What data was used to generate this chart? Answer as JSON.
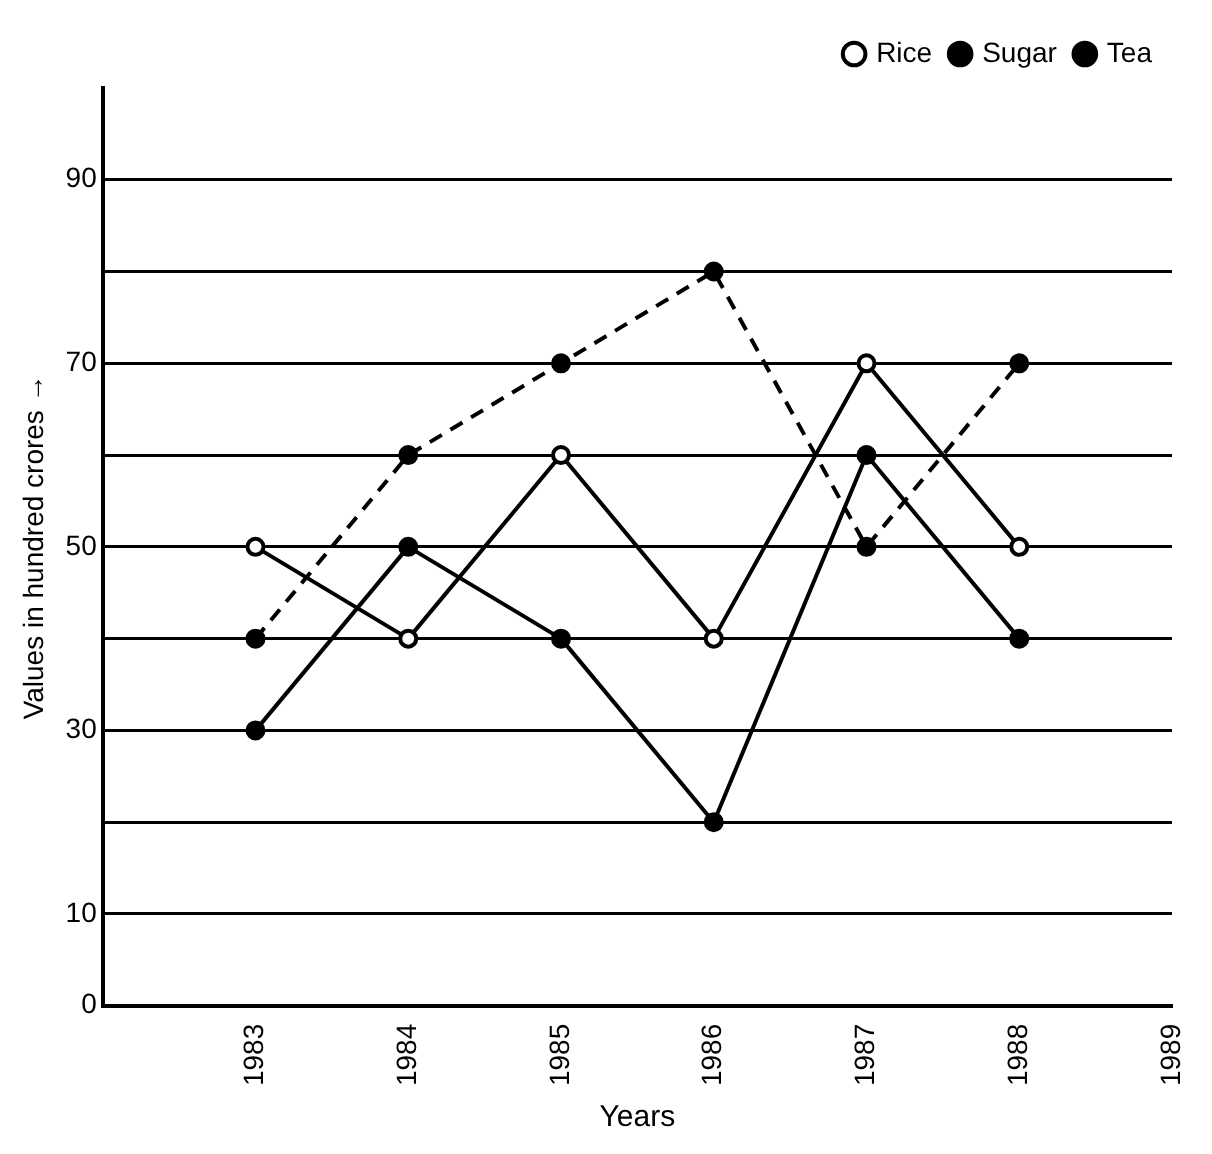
{
  "chart_data": {
    "type": "line",
    "xlabel": "Years",
    "ylabel": "Values in hundred crores →",
    "x": [
      1983,
      1984,
      1985,
      1986,
      1987,
      1988
    ],
    "series": [
      {
        "name": "Rice",
        "color": "#000000",
        "values": [
          50,
          40,
          60,
          40,
          70,
          50
        ],
        "line_style": "solid"
      },
      {
        "name": "Sugar",
        "color": "#000000",
        "values": [
          40,
          60,
          70,
          80,
          50,
          70
        ],
        "line_style": "dashed"
      },
      {
        "name": "Tea",
        "color": "#000000",
        "values": [
          30,
          50,
          40,
          20,
          60,
          40
        ],
        "line_style": "solid"
      }
    ],
    "xlim": [
      1982,
      1989
    ],
    "xticks": [
      {
        "value": 1982,
        "label": null
      },
      1983,
      1984,
      1985,
      1986,
      1987,
      1988,
      1989
    ],
    "ylim": [
      0,
      100
    ],
    "yticks": [
      0,
      {
        "value": 10,
        "label": "10"
      },
      {
        "value": 20,
        "label": null
      },
      {
        "value": 30,
        "label": "30"
      },
      {
        "value": 40,
        "label": null
      },
      {
        "value": 50,
        "label": "50"
      },
      {
        "value": 60,
        "label": null
      },
      {
        "value": 70,
        "label": "70"
      },
      {
        "value": 80,
        "label": null
      },
      {
        "value": 90,
        "label": "90"
      }
    ],
    "grid": "y",
    "legend": "top right",
    "marker": "circle"
  }
}
